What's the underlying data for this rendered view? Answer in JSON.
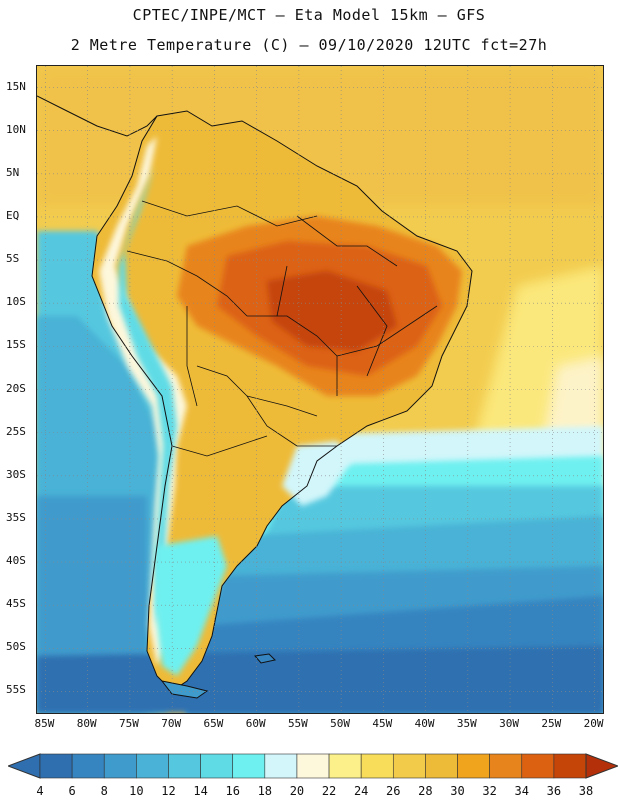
{
  "header": {
    "line1": "CPTEC/INPE/MCT –  Eta Model 15km – GFS",
    "line2": "2 Metre Temperature (C) – 09/10/2020 12UTC fct=27h"
  },
  "map": {
    "lat_labels": [
      "15N",
      "10N",
      "5N",
      "EQ",
      "5S",
      "10S",
      "15S",
      "20S",
      "25S",
      "30S",
      "35S",
      "40S",
      "45S",
      "50S",
      "55S"
    ],
    "lon_labels": [
      "85W",
      "80W",
      "75W",
      "70W",
      "65W",
      "60W",
      "55W",
      "50W",
      "45W",
      "40W",
      "35W",
      "30W",
      "25W",
      "20W"
    ],
    "lat_range": [
      17.5,
      -57.5
    ],
    "lon_range": [
      -86,
      -19
    ]
  },
  "colorbar": {
    "labels": [
      "4",
      "6",
      "8",
      "10",
      "12",
      "14",
      "16",
      "18",
      "20",
      "22",
      "24",
      "26",
      "28",
      "30",
      "32",
      "34",
      "36",
      "38"
    ],
    "colors": [
      "#2f6fb0",
      "#3684c0",
      "#3f9bcc",
      "#4ab2d6",
      "#55c8df",
      "#5fdbe6",
      "#6ef0f0",
      "#d2f6fa",
      "#fdf7dc",
      "#fbf08a",
      "#f7dd5a",
      "#f2cb4a",
      "#eebb38",
      "#f0a31d",
      "#e8841c",
      "#dc6212",
      "#c54408",
      "#b3300a"
    ]
  }
}
